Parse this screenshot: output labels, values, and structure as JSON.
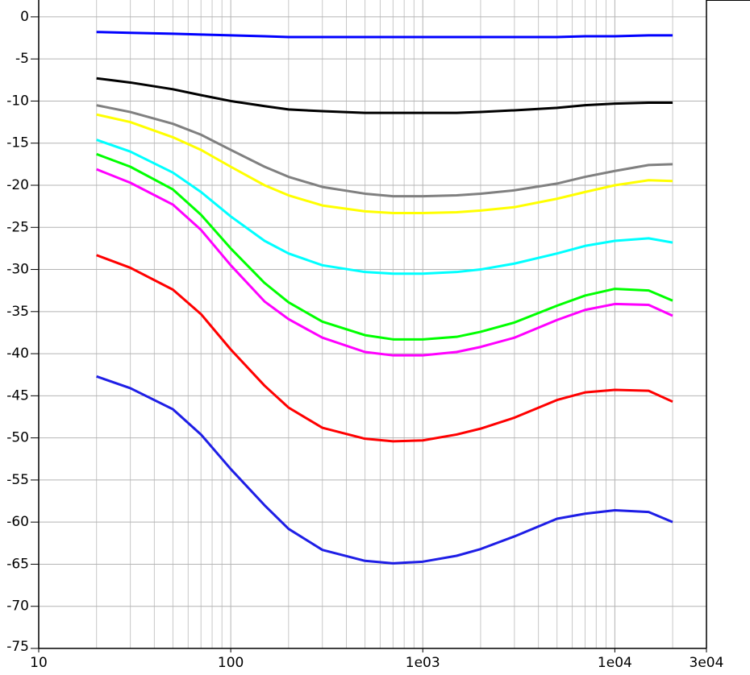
{
  "chart_data": {
    "type": "line",
    "xscale": "log",
    "grid": true,
    "xlim": [
      10,
      30000
    ],
    "ylim": [
      -75,
      2
    ],
    "xticks": [
      10,
      100,
      {
        "value": 1000,
        "label": "1e03"
      },
      {
        "value": 10000,
        "label": "1e04"
      },
      {
        "value": 30000,
        "label": "3e04"
      }
    ],
    "x_minor_grid": [
      20,
      30,
      40,
      50,
      60,
      70,
      80,
      90,
      200,
      300,
      400,
      500,
      600,
      700,
      800,
      900,
      2000,
      3000,
      4000,
      5000,
      6000,
      7000,
      8000,
      9000,
      20000
    ],
    "yticks": [
      0,
      -5,
      -10,
      -15,
      -20,
      -25,
      -30,
      -35,
      -40,
      -45,
      -50,
      -55,
      -60,
      -65,
      -70,
      -75
    ],
    "x": [
      20,
      30,
      50,
      70,
      100,
      150,
      200,
      300,
      500,
      700,
      1000,
      1500,
      2000,
      3000,
      5000,
      7000,
      10000,
      15000,
      20000
    ],
    "series": [
      {
        "color": "#0000ff",
        "values": [
          -1.8,
          -1.9,
          -2.0,
          -2.1,
          -2.2,
          -2.3,
          -2.4,
          -2.4,
          -2.4,
          -2.4,
          -2.4,
          -2.4,
          -2.4,
          -2.4,
          -2.4,
          -2.3,
          -2.3,
          -2.2,
          -2.2
        ]
      },
      {
        "color": "#000000",
        "values": [
          -7.3,
          -7.8,
          -8.6,
          -9.3,
          -10.0,
          -10.6,
          -11.0,
          -11.2,
          -11.4,
          -11.4,
          -11.4,
          -11.4,
          -11.3,
          -11.1,
          -10.8,
          -10.5,
          -10.3,
          -10.2,
          -10.2
        ]
      },
      {
        "color": "#808080",
        "values": [
          -10.5,
          -11.3,
          -12.7,
          -14.0,
          -15.8,
          -17.8,
          -19.0,
          -20.2,
          -21.0,
          -21.3,
          -21.3,
          -21.2,
          -21.0,
          -20.6,
          -19.8,
          -19.0,
          -18.3,
          -17.6,
          -17.5
        ]
      },
      {
        "color": "#ffff00",
        "values": [
          -11.6,
          -12.5,
          -14.3,
          -15.8,
          -17.8,
          -20.0,
          -21.2,
          -22.4,
          -23.1,
          -23.3,
          -23.3,
          -23.2,
          -23.0,
          -22.6,
          -21.6,
          -20.8,
          -20.0,
          -19.4,
          -19.5
        ]
      },
      {
        "color": "#00ffff",
        "values": [
          -14.6,
          -16.0,
          -18.5,
          -20.8,
          -23.7,
          -26.6,
          -28.1,
          -29.5,
          -30.3,
          -30.5,
          -30.5,
          -30.3,
          -30.0,
          -29.3,
          -28.1,
          -27.2,
          -26.6,
          -26.3,
          -26.8
        ]
      },
      {
        "color": "#00ff00",
        "values": [
          -16.3,
          -17.8,
          -20.5,
          -23.5,
          -27.5,
          -31.6,
          -33.9,
          -36.2,
          -37.8,
          -38.3,
          -38.3,
          -38.0,
          -37.4,
          -36.3,
          -34.3,
          -33.1,
          -32.3,
          -32.5,
          -33.7
        ]
      },
      {
        "color": "#ff00ff",
        "values": [
          -18.1,
          -19.7,
          -22.3,
          -25.3,
          -29.5,
          -33.8,
          -35.9,
          -38.1,
          -39.8,
          -40.2,
          -40.2,
          -39.8,
          -39.2,
          -38.1,
          -36.0,
          -34.8,
          -34.1,
          -34.2,
          -35.5
        ]
      },
      {
        "color": "#ff0000",
        "values": [
          -28.3,
          -29.8,
          -32.4,
          -35.3,
          -39.5,
          -43.8,
          -46.4,
          -48.8,
          -50.1,
          -50.4,
          -50.3,
          -49.6,
          -48.9,
          -47.6,
          -45.5,
          -44.6,
          -44.3,
          -44.4,
          -45.7
        ]
      },
      {
        "color": "#1e1ee6",
        "values": [
          -42.7,
          -44.1,
          -46.6,
          -49.6,
          -53.7,
          -58.0,
          -60.8,
          -63.3,
          -64.6,
          -64.9,
          -64.7,
          -64.0,
          -63.2,
          -61.7,
          -59.6,
          -59.0,
          -58.6,
          -58.8,
          -60.0
        ]
      }
    ]
  }
}
